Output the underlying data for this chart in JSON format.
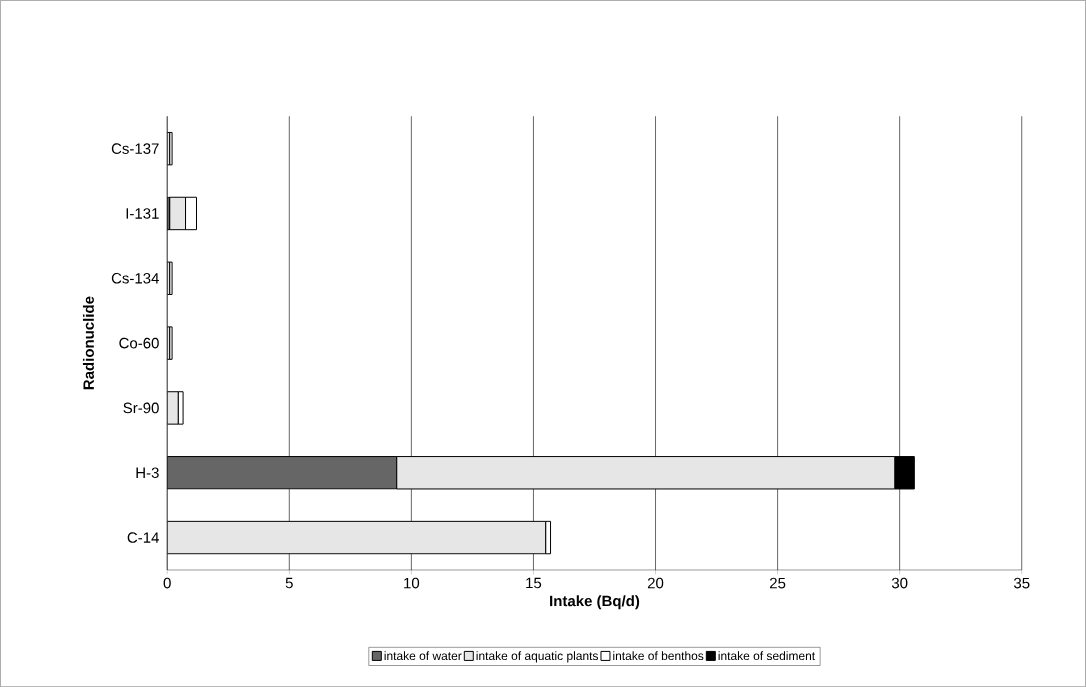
{
  "chart_data": {
    "type": "bar",
    "orientation": "horizontal",
    "stacked": true,
    "xlabel": "Intake (Bq/d)",
    "ylabel": "Radionuclide",
    "categories": [
      "Cs-137",
      "I-131",
      "Cs-134",
      "Co-60",
      "Sr-90",
      "H-3",
      "C-14"
    ],
    "series": [
      {
        "name": "intake of water",
        "color": "#666666",
        "values": [
          0,
          0.1,
          0,
          0,
          0,
          9.4,
          0
        ]
      },
      {
        "name": "intake of aquatic plants",
        "color": "#e6e6e6",
        "values": [
          0.1,
          0.65,
          0.1,
          0.1,
          0.45,
          20.4,
          15.5
        ]
      },
      {
        "name": "intake of benthos",
        "color": "#ffffff",
        "values": [
          0.1,
          0.45,
          0.1,
          0.1,
          0.2,
          0,
          0.2
        ]
      },
      {
        "name": "intake of sediment",
        "color": "#000000",
        "values": [
          0,
          0,
          0,
          0,
          0,
          0.8,
          0
        ]
      }
    ],
    "xlim": [
      0,
      35
    ],
    "xticks": [
      0,
      5,
      10,
      15,
      20,
      25,
      30,
      35
    ],
    "grid": "x",
    "legend": "bottom"
  }
}
